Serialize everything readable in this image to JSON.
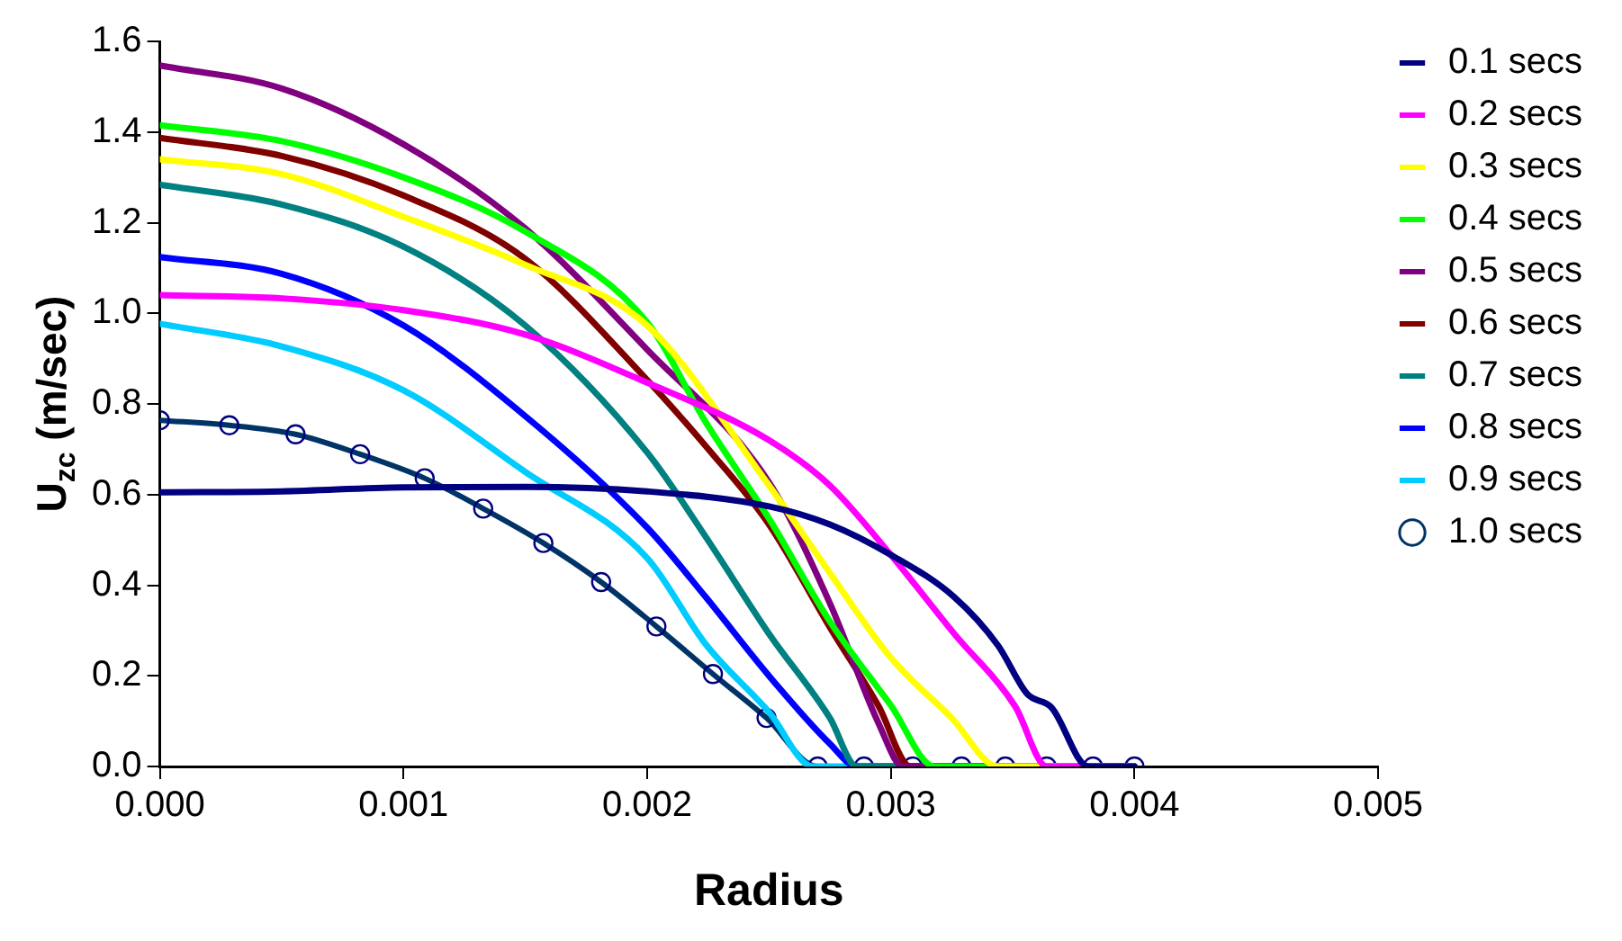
{
  "chart_data": {
    "type": "line",
    "xlabel": "Radius",
    "ylabel": "U$_{zc}$ (m/sec)",
    "xlim": [
      0,
      0.005
    ],
    "xticks": [
      {
        "value": 0,
        "label": "0.000"
      },
      {
        "value": 0.001,
        "label": "0.001"
      },
      {
        "value": 0.002,
        "label": "0.002"
      },
      {
        "value": 0.003,
        "label": "0.003"
      },
      {
        "value": 0.004,
        "label": "0.004"
      },
      {
        "value": 0.005,
        "label": "0.005"
      }
    ],
    "ylim": [
      0,
      1.6
    ],
    "yticks": [
      {
        "value": 0,
        "label": "0.0"
      },
      0.2,
      0.4,
      0.6,
      0.8,
      {
        "value": 1,
        "label": "1.0"
      },
      1.2,
      1.4,
      1.6
    ],
    "grid": false,
    "legend": "right",
    "marker": "none",
    "line_style": "solid",
    "series": [
      {
        "name": "0.1 secs",
        "color": "#000080",
        "x": [
          0,
          0.0005,
          0.001,
          0.0015,
          0.002,
          0.0025,
          0.00275,
          0.003,
          0.00326,
          0.00344,
          0.00356,
          0.00366,
          0.00381,
          0.004
        ],
        "values": [
          0.605,
          0.607,
          0.616,
          0.617,
          0.607,
          0.574,
          0.534,
          0.467,
          0.374,
          0.267,
          0.16,
          0.13,
          0,
          0
        ]
      },
      {
        "name": "0.2 secs",
        "color": "#ff00ff",
        "x": [
          0,
          0.0005,
          0.001,
          0.0015,
          0.002,
          0.0025,
          0.00275,
          0.003,
          0.00326,
          0.00351,
          0.00364,
          0.004
        ],
        "values": [
          1.04,
          1.033,
          1.007,
          0.953,
          0.847,
          0.72,
          0.62,
          0.467,
          0.293,
          0.133,
          0,
          0
        ]
      },
      {
        "name": "0.3 secs",
        "color": "#ffff00",
        "x": [
          0,
          0.0005,
          0.001,
          0.0015,
          0.002,
          0.0025,
          0.00275,
          0.003,
          0.00325,
          0.00344,
          0.004
        ],
        "values": [
          1.34,
          1.307,
          1.213,
          1.107,
          0.973,
          0.62,
          0.427,
          0.24,
          0.107,
          0,
          0
        ]
      },
      {
        "name": "0.4 secs",
        "color": "#00ff00",
        "x": [
          0,
          0.0005,
          0.001,
          0.0015,
          0.002,
          0.00224,
          0.0025,
          0.00275,
          0.003,
          0.00318,
          0.004
        ],
        "values": [
          1.415,
          1.38,
          1.3,
          1.18,
          0.98,
          0.76,
          0.547,
          0.32,
          0.135,
          0,
          0
        ]
      },
      {
        "name": "0.5 secs",
        "color": "#800080",
        "x": [
          0,
          0.0005,
          0.001,
          0.0015,
          0.002,
          0.0025,
          0.00275,
          0.00295,
          0.00305,
          0.004
        ],
        "values": [
          1.547,
          1.496,
          1.373,
          1.187,
          0.92,
          0.627,
          0.36,
          0.095,
          0,
          0
        ]
      },
      {
        "name": "0.6 secs",
        "color": "#800000",
        "x": [
          0,
          0.0005,
          0.001,
          0.0015,
          0.002,
          0.00224,
          0.0025,
          0.00275,
          0.00295,
          0.00308,
          0.004
        ],
        "values": [
          1.387,
          1.347,
          1.26,
          1.12,
          0.853,
          0.707,
          0.534,
          0.307,
          0.133,
          0,
          0
        ]
      },
      {
        "name": "0.7 secs",
        "color": "#008080",
        "x": [
          0,
          0.0005,
          0.001,
          0.0015,
          0.002,
          0.00224,
          0.0025,
          0.00275,
          0.00286,
          0.004
        ],
        "values": [
          1.284,
          1.24,
          1.147,
          0.973,
          0.693,
          0.507,
          0.293,
          0.107,
          0,
          0
        ]
      },
      {
        "name": "0.8 secs",
        "color": "#0000ff",
        "x": [
          0,
          0.0005,
          0.001,
          0.0015,
          0.002,
          0.00224,
          0.0025,
          0.00275,
          0.00286,
          0.004
        ],
        "values": [
          1.124,
          1.087,
          0.973,
          0.773,
          0.527,
          0.374,
          0.2,
          0.05,
          0,
          0
        ]
      },
      {
        "name": "0.9 secs",
        "color": "#00ccff",
        "x": [
          0,
          0.0005,
          0.001,
          0.0015,
          0.002,
          0.00224,
          0.0025,
          0.00268,
          0.004
        ],
        "values": [
          0.977,
          0.927,
          0.83,
          0.65,
          0.46,
          0.27,
          0.12,
          0,
          0
        ]
      },
      {
        "name": "1.0 secs",
        "color": "#003366",
        "marker": "circle",
        "x": [
          0,
          0.000285,
          0.000557,
          0.000822,
          0.001087,
          0.001327,
          0.001574,
          0.001811,
          0.002038,
          0.00227,
          0.00249,
          0.0027,
          0.00289,
          0.00309,
          0.00329,
          0.00347,
          0.00364,
          0.00383,
          0.004
        ],
        "values": [
          0.764,
          0.753,
          0.733,
          0.689,
          0.636,
          0.569,
          0.493,
          0.407,
          0.309,
          0.204,
          0.107,
          0,
          0,
          0,
          0,
          0,
          0,
          0,
          0
        ]
      }
    ]
  }
}
